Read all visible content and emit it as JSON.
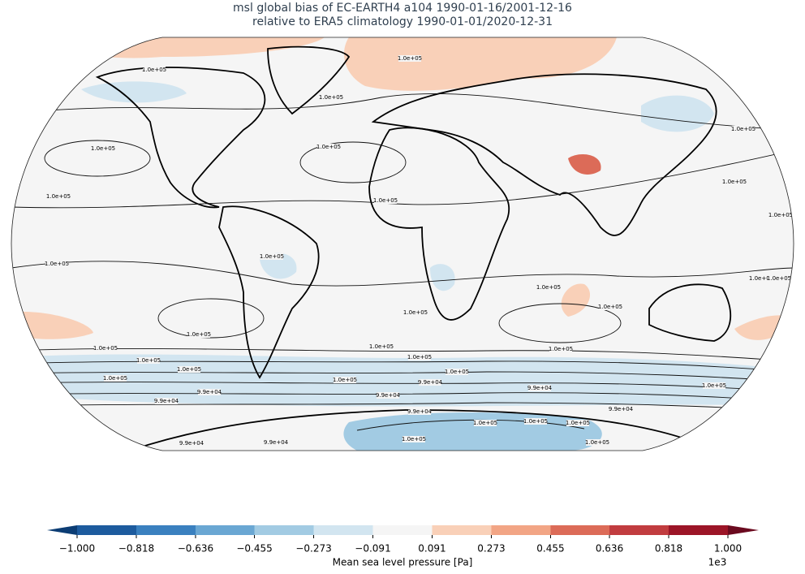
{
  "title": [
    "msl global bias of EC-EARTH4 a104 1990-01-16/2001-12-16",
    "relative to ERA5 climatology 1990-01-01/2020-12-31"
  ],
  "contour_labels": [
    "1.0e+05",
    "1.0e+05",
    "1.0e+05",
    "1.0e+05",
    "1.0e+05",
    "1.0e+05",
    "1.0e+05",
    "1.0e+05",
    "1.0e+05",
    "1.0e+05",
    "1.0e+05",
    "1.0e+05",
    "1.0e+05",
    "1.0e+05",
    "1.0e+05",
    "1.0e+05",
    "1.0e+05",
    "1.0e+05",
    "1.0e+05",
    "1.0e+05",
    "1.0e+05",
    "1.0e+05",
    "1.0e+05",
    "1.0e+05",
    "1.0e+05",
    "1.0e+05",
    "1.0e+05",
    "9.9e+04",
    "9.9e+04",
    "9.9e+04",
    "9.9e+04",
    "9.9e+04",
    "9.9e+04",
    "9.9e+04",
    "9.9e+04",
    "1.0e+05",
    "1.0e+05",
    "1.0e+05",
    "9.9e+04",
    "1.0e+05",
    "1.0e+05",
    "1.0e+05"
  ],
  "colorbar": {
    "label": "Mean sea level pressure [Pa]",
    "offset": "1e3",
    "ticks": [
      {
        "value": -1.0,
        "label": "−1.000"
      },
      {
        "value": -0.818,
        "label": "−0.818"
      },
      {
        "value": -0.636,
        "label": "−0.636"
      },
      {
        "value": -0.455,
        "label": "−0.455"
      },
      {
        "value": -0.273,
        "label": "−0.273"
      },
      {
        "value": -0.091,
        "label": "−0.091"
      },
      {
        "value": 0.091,
        "label": "0.091"
      },
      {
        "value": 0.273,
        "label": "0.273"
      },
      {
        "value": 0.455,
        "label": "0.455"
      },
      {
        "value": 0.636,
        "label": "0.636"
      },
      {
        "value": 0.818,
        "label": "0.818"
      },
      {
        "value": 1.0,
        "label": "1.000"
      }
    ],
    "colors": [
      "#1d5b9e",
      "#3a80bf",
      "#6aa7d3",
      "#a2cbe3",
      "#d2e5f0",
      "#f5f5f5",
      "#f9d0b8",
      "#f2a585",
      "#dc6b58",
      "#c13c3f",
      "#9c1527"
    ],
    "under_color": "#0c3d74",
    "over_color": "#6b0a1f"
  }
}
